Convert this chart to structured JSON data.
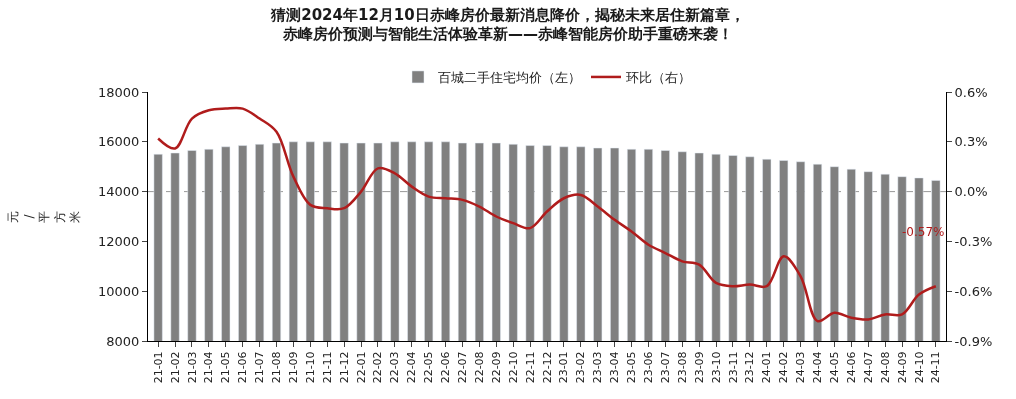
{
  "chart_data": {
    "type": "bar",
    "title": "猜测2024年12月10日赤峰房价最新消息降价，揭秘未来居住新篇章，",
    "subtitle": "赤峰房价预测与智能生活体验革新——赤峰智能房价助手重磅来袭！",
    "ylabel": "元/平方米",
    "categories": [
      "21-01",
      "21-02",
      "21-03",
      "21-04",
      "21-05",
      "21-06",
      "21-07",
      "21-08",
      "21-09",
      "21-10",
      "21-11",
      "21-12",
      "22-01",
      "22-02",
      "22-03",
      "22-04",
      "22-05",
      "22-06",
      "22-07",
      "22-08",
      "22-09",
      "22-10",
      "22-11",
      "22-12",
      "23-01",
      "23-02",
      "23-03",
      "23-04",
      "23-05",
      "23-06",
      "23-07",
      "23-08",
      "23-09",
      "23-10",
      "23-11",
      "23-12",
      "24-01",
      "24-02",
      "24-03",
      "24-04",
      "24-05",
      "24-06",
      "24-07",
      "24-08",
      "24-09",
      "24-10",
      "24-11"
    ],
    "series": [
      {
        "name": "百城二手住宅均价（左）",
        "color": "#808080",
        "values": [
          15500,
          15550,
          15650,
          15700,
          15800,
          15850,
          15900,
          15950,
          16000,
          16000,
          16000,
          15950,
          15950,
          15950,
          16000,
          16000,
          16000,
          16000,
          15950,
          15950,
          15950,
          15900,
          15850,
          15850,
          15800,
          15800,
          15750,
          15750,
          15700,
          15700,
          15650,
          15600,
          15550,
          15500,
          15450,
          15400,
          15300,
          15250,
          15200,
          15100,
          15000,
          14900,
          14800,
          14700,
          14600,
          14550,
          14450
        ]
      },
      {
        "name": "环比（右）",
        "type": "line",
        "axis": "y2",
        "color": "#b01c1c",
        "values": [
          0.32,
          0.26,
          0.44,
          0.49,
          0.5,
          0.5,
          0.44,
          0.36,
          0.09,
          -0.08,
          -0.1,
          -0.1,
          0.0,
          0.14,
          0.11,
          0.03,
          -0.03,
          -0.04,
          -0.05,
          -0.09,
          -0.15,
          -0.19,
          -0.22,
          -0.12,
          -0.04,
          -0.02,
          -0.09,
          -0.17,
          -0.24,
          -0.32,
          -0.37,
          -0.42,
          -0.44,
          -0.55,
          -0.57,
          -0.56,
          -0.57,
          -0.39,
          -0.51,
          -0.78,
          -0.73,
          -0.76,
          -0.77,
          -0.74,
          -0.74,
          -0.62,
          -0.57
        ]
      }
    ],
    "ylim": [
      8000,
      18000
    ],
    "yticks": [
      8000,
      10000,
      12000,
      14000,
      16000,
      18000
    ],
    "y2lim": [
      -0.9,
      0.6
    ],
    "y2ticks": [
      {
        "value": -0.9,
        "label": "-0.9%"
      },
      {
        "value": -0.6,
        "label": "-0.6%"
      },
      {
        "value": -0.3,
        "label": "-0.3%"
      },
      {
        "value": 0,
        "label": "0.0%"
      },
      {
        "value": 0.3,
        "label": "0.3%"
      },
      {
        "value": 0.6,
        "label": "0.6%"
      }
    ],
    "ref_lines": [
      {
        "axis": "y2",
        "value": 0,
        "color": "#999999",
        "line_style": "dashed"
      }
    ],
    "annotations": [
      "-0.57%"
    ],
    "legend": "top",
    "grid": false,
    "marker": "none",
    "line_style": "solid"
  }
}
